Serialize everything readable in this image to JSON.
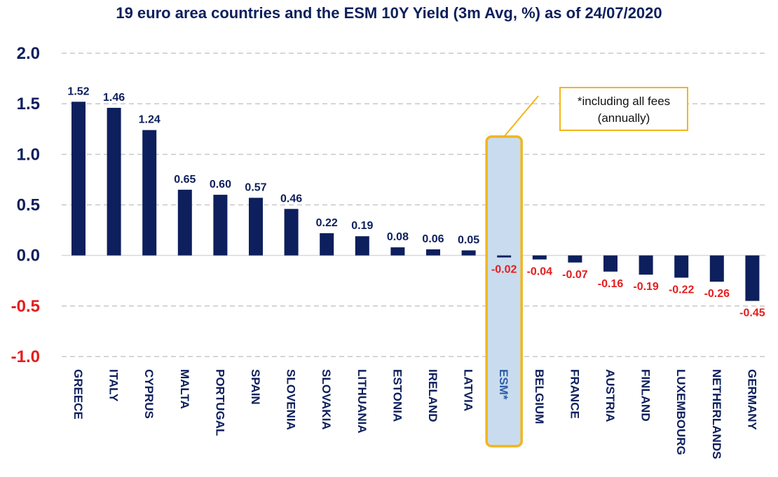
{
  "title": "19 euro area countries and the ESM 10Y Yield (3m Avg, %) as of 24/07/2020",
  "annotation": {
    "line1": "*including all fees",
    "line2": "(annually)"
  },
  "colors": {
    "bar": "#0d1f5c",
    "text_positive": "#0d1f5c",
    "text_negative": "#e41e1e",
    "highlight_fill": "#c9dcef",
    "highlight_border": "#f2b51c",
    "esm_label": "#2e5fa7",
    "gridline": "#c8c8c8"
  },
  "chart_data": {
    "type": "bar",
    "title": "19 euro area countries and the ESM 10Y Yield (3m Avg, %) as of 24/07/2020",
    "xlabel": "",
    "ylabel": "",
    "categories": [
      "GREECE",
      "ITALY",
      "CYPRUS",
      "MALTA",
      "PORTUGAL",
      "SPAIN",
      "SLOVENIA",
      "SLOVAKIA",
      "LITHUANIA",
      "ESTONIA",
      "IRELAND",
      "LATVIA",
      "ESM*",
      "BELGIUM",
      "FRANCE",
      "AUSTRIA",
      "FINLAND",
      "LUXEMBOURG",
      "NETHERLANDS",
      "GERMANY"
    ],
    "values": [
      1.52,
      1.46,
      1.24,
      0.65,
      0.6,
      0.57,
      0.46,
      0.22,
      0.19,
      0.08,
      0.06,
      0.05,
      -0.02,
      -0.04,
      -0.07,
      -0.16,
      -0.19,
      -0.22,
      -0.26,
      -0.45
    ],
    "value_labels": [
      "1.52",
      "1.46",
      "1.24",
      "0.65",
      "0.60",
      "0.57",
      "0.46",
      "0.22",
      "0.19",
      "0.08",
      "0.06",
      "0.05",
      "-0.02",
      "-0.04",
      "-0.07",
      "-0.16",
      "-0.19",
      "-0.22",
      "-0.26",
      "-0.45"
    ],
    "highlighted_category": "ESM*",
    "ylim": [
      -1.0,
      2.0
    ],
    "yticks": [
      "2.0",
      "1.5",
      "1.0",
      "0.5",
      "0.0",
      "-0.5",
      "-1.0"
    ],
    "ytick_values": [
      2.0,
      1.5,
      1.0,
      0.5,
      0.0,
      -0.5,
      -1.0
    ],
    "grid": true,
    "legend": "none"
  }
}
